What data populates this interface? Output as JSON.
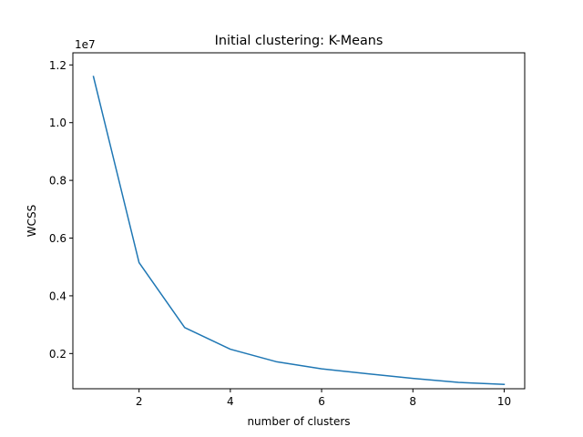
{
  "chart_data": {
    "type": "line",
    "title": "Initial clustering: K-Means",
    "xlabel": "number of clusters",
    "ylabel": "WCSS",
    "y_offset_label": "1e7",
    "xlim": [
      0.55,
      10.45
    ],
    "ylim": [
      0.78,
      12.42
    ],
    "x_ticks": [
      2,
      4,
      6,
      8,
      10
    ],
    "x_tick_labels": [
      "2",
      "4",
      "6",
      "8",
      "10"
    ],
    "y_ticks": [
      2,
      4,
      6,
      8,
      10,
      12
    ],
    "y_tick_labels": [
      "0.2",
      "0.4",
      "0.6",
      "0.8",
      "1.0",
      "1.2"
    ],
    "grid": false,
    "series": [
      {
        "color": "#1f77b4",
        "x": [
          1,
          2,
          3,
          4,
          5,
          6,
          7,
          8,
          9,
          10
        ],
        "y": [
          11.6,
          5.15,
          2.9,
          2.15,
          1.72,
          1.47,
          1.3,
          1.14,
          1.0,
          0.93
        ]
      }
    ]
  }
}
